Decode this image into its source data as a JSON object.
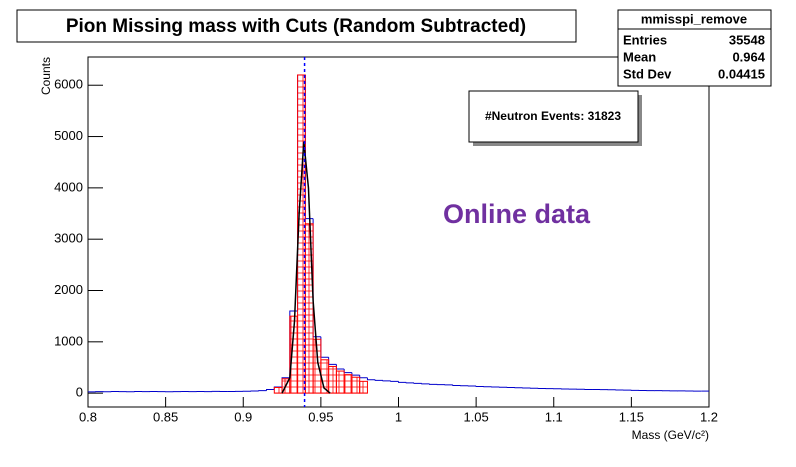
{
  "chart_data": {
    "type": "histogram",
    "title": "Pion Missing mass with Cuts (Random Subtracted)",
    "x_label": "Mass (GeV/c²)",
    "y_label": "Counts",
    "xlim": [
      0.8,
      1.2
    ],
    "ylim": [
      -270,
      6550
    ],
    "xticks": [
      0.8,
      0.85,
      0.9,
      0.95,
      1,
      1.05,
      1.1,
      1.15,
      1.2
    ],
    "yticks": [
      0,
      1000,
      2000,
      3000,
      4000,
      5000,
      6000
    ],
    "stats": {
      "title": "mmisspi_remove",
      "rows": [
        [
          "Entries",
          35548
        ],
        [
          "Mean",
          0.964
        ],
        [
          "Std Dev",
          0.04415
        ]
      ]
    },
    "annotations": [
      "#Neutron Events: 31823",
      "Online data"
    ],
    "vline": {
      "x": 0.9395,
      "color": "#0000ff"
    },
    "series": [
      {
        "color": "#0000cc",
        "fill": false,
        "bins": [
          0.8,
          0.805,
          0.81,
          0.815,
          0.82,
          0.825,
          0.83,
          0.835,
          0.84,
          0.845,
          0.85,
          0.855,
          0.86,
          0.865,
          0.87,
          0.875,
          0.88,
          0.885,
          0.89,
          0.895,
          0.9,
          0.905,
          0.91,
          0.915,
          0.92,
          0.925,
          0.93,
          0.935,
          0.94,
          0.945,
          0.95,
          0.955,
          0.96,
          0.965,
          0.97,
          0.975,
          0.98,
          0.985,
          0.99,
          0.995,
          1,
          1.005,
          1.01,
          1.015,
          1.02,
          1.025,
          1.03,
          1.035,
          1.04,
          1.045,
          1.05,
          1.055,
          1.06,
          1.065,
          1.07,
          1.075,
          1.08,
          1.085,
          1.09,
          1.095,
          1.1,
          1.105,
          1.11,
          1.115,
          1.12,
          1.125,
          1.13,
          1.135,
          1.14,
          1.145,
          1.15,
          1.155,
          1.16,
          1.165,
          1.17,
          1.175,
          1.18,
          1.185,
          1.19,
          1.195,
          1.2
        ],
        "values": [
          25,
          30,
          28,
          32,
          30,
          27,
          31,
          29,
          33,
          30,
          28,
          30,
          32,
          29,
          31,
          30,
          34,
          31,
          33,
          35,
          38,
          42,
          50,
          70,
          120,
          300,
          1600,
          6200,
          3400,
          1100,
          700,
          560,
          470,
          400,
          350,
          300,
          260,
          250,
          240,
          230,
          210,
          200,
          190,
          180,
          170,
          165,
          160,
          150,
          145,
          140,
          130,
          125,
          120,
          115,
          110,
          105,
          100,
          95,
          90,
          88,
          85,
          80,
          78,
          75,
          72,
          70,
          68,
          65,
          62,
          60,
          55,
          52,
          50,
          48,
          46,
          45,
          44,
          42,
          40,
          40
        ]
      },
      {
        "color": "#ff0000",
        "fill": true,
        "bins": [
          0.9,
          0.905,
          0.91,
          0.915,
          0.92,
          0.925,
          0.93,
          0.935,
          0.94,
          0.945,
          0.95,
          0.955,
          0.96,
          0.965,
          0.97,
          0.975,
          0.98
        ],
        "values": [
          0,
          0,
          0,
          0,
          110,
          280,
          1500,
          6200,
          3300,
          1050,
          650,
          520,
          430,
          360,
          310,
          230
        ]
      }
    ],
    "fit": {
      "color": "#000000",
      "x": [
        0.925,
        0.93,
        0.933,
        0.936,
        0.939,
        0.942,
        0.945,
        0.948,
        0.952,
        0.956
      ],
      "values": [
        0,
        300,
        1400,
        3500,
        4900,
        4000,
        1800,
        600,
        100,
        0
      ]
    }
  }
}
